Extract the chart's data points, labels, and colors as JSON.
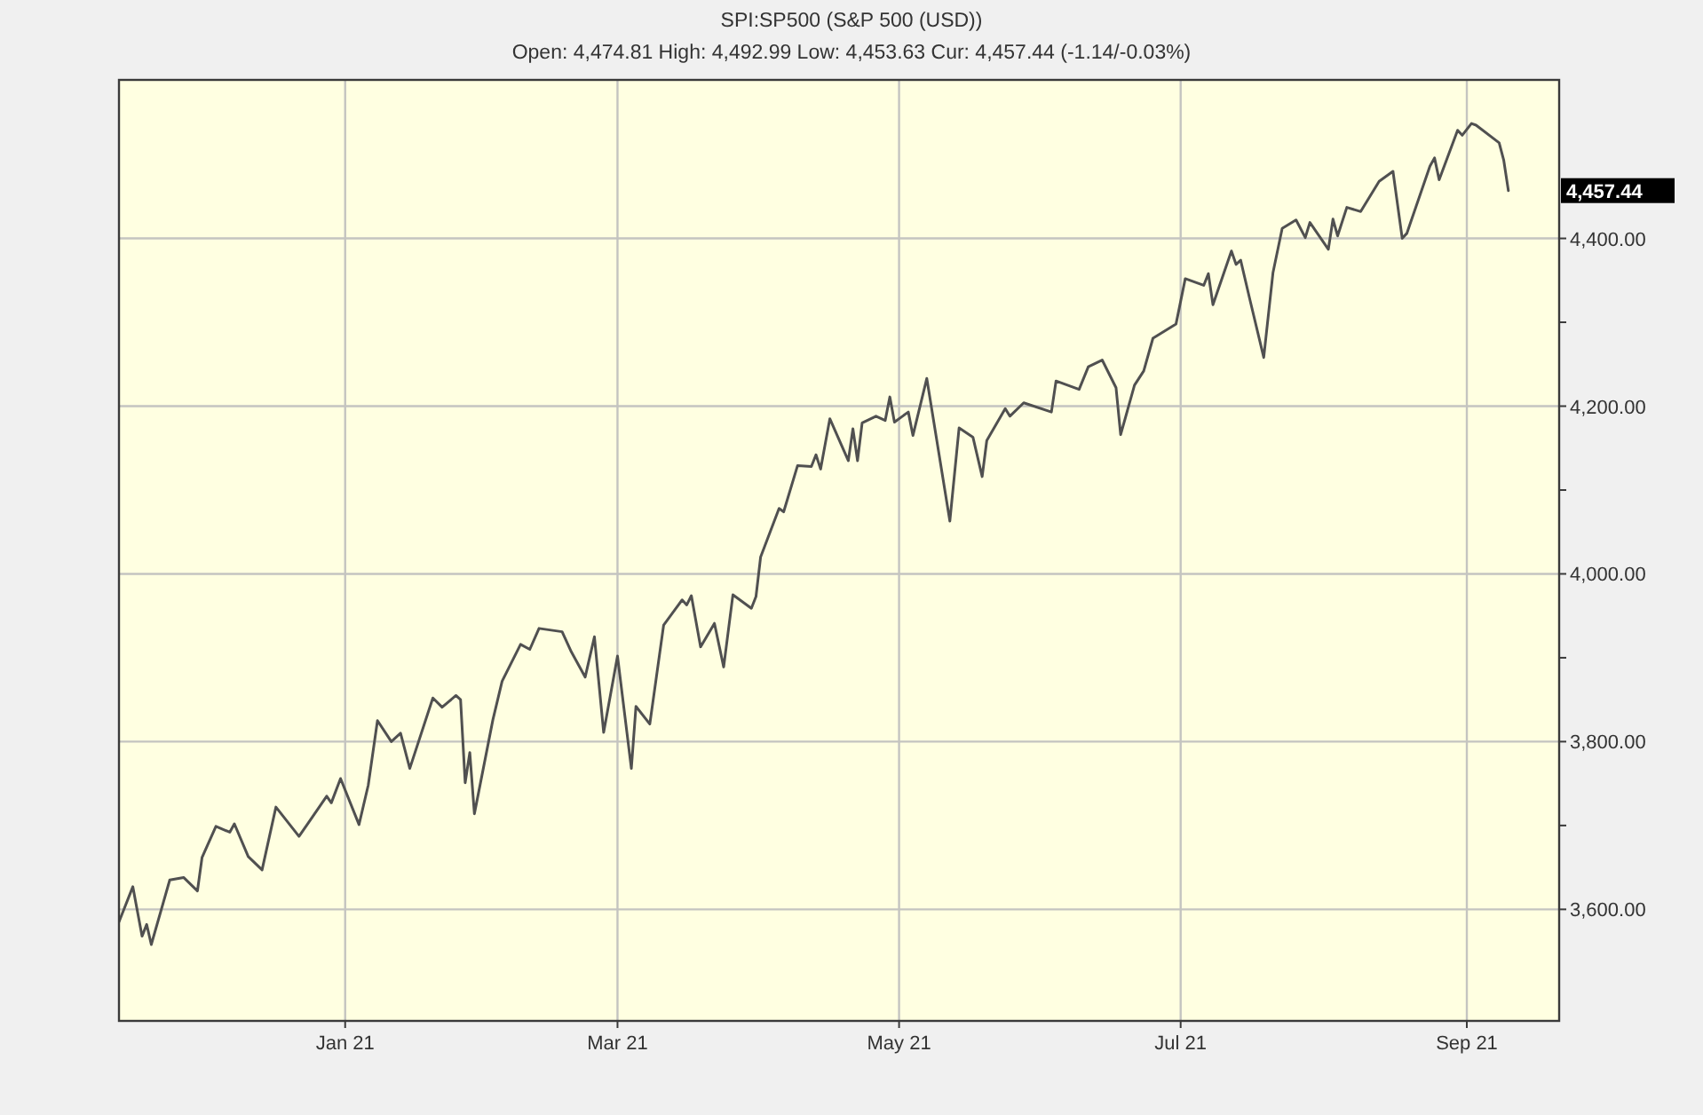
{
  "chart_data": {
    "type": "line",
    "title": "SPI:SP500 (S&P 500 (USD))",
    "subtitle": "Open: 4,474.81 High: 4,492.99 Low: 4,453.63 Cur: 4,457.44 (-1.14/-0.03%)",
    "x": [
      "2020-11-13",
      "2020-11-16",
      "2020-11-18",
      "2020-11-19",
      "2020-11-20",
      "2020-11-24",
      "2020-11-27",
      "2020-11-30",
      "2020-12-01",
      "2020-12-04",
      "2020-12-07",
      "2020-12-08",
      "2020-12-11",
      "2020-12-14",
      "2020-12-17",
      "2020-12-22",
      "2020-12-24",
      "2020-12-28",
      "2020-12-29",
      "2020-12-31",
      "2021-01-04",
      "2021-01-06",
      "2021-01-08",
      "2021-01-11",
      "2021-01-13",
      "2021-01-15",
      "2021-01-20",
      "2021-01-22",
      "2021-01-25",
      "2021-01-26",
      "2021-01-27",
      "2021-01-28",
      "2021-01-29",
      "2021-02-02",
      "2021-02-04",
      "2021-02-08",
      "2021-02-10",
      "2021-02-12",
      "2021-02-17",
      "2021-02-19",
      "2021-02-22",
      "2021-02-24",
      "2021-02-26",
      "2021-03-01",
      "2021-03-04",
      "2021-03-05",
      "2021-03-08",
      "2021-03-11",
      "2021-03-15",
      "2021-03-16",
      "2021-03-17",
      "2021-03-19",
      "2021-03-22",
      "2021-03-24",
      "2021-03-26",
      "2021-03-30",
      "2021-03-31",
      "2021-04-01",
      "2021-04-05",
      "2021-04-06",
      "2021-04-09",
      "2021-04-12",
      "2021-04-13",
      "2021-04-14",
      "2021-04-16",
      "2021-04-20",
      "2021-04-21",
      "2021-04-22",
      "2021-04-23",
      "2021-04-26",
      "2021-04-28",
      "2021-04-29",
      "2021-04-30",
      "2021-05-03",
      "2021-05-04",
      "2021-05-07",
      "2021-05-12",
      "2021-05-14",
      "2021-05-17",
      "2021-05-19",
      "2021-05-20",
      "2021-05-24",
      "2021-05-25",
      "2021-05-28",
      "2021-06-03",
      "2021-06-04",
      "2021-06-09",
      "2021-06-11",
      "2021-06-14",
      "2021-06-17",
      "2021-06-18",
      "2021-06-21",
      "2021-06-23",
      "2021-06-25",
      "2021-06-30",
      "2021-07-02",
      "2021-07-06",
      "2021-07-07",
      "2021-07-08",
      "2021-07-12",
      "2021-07-13",
      "2021-07-14",
      "2021-07-16",
      "2021-07-19",
      "2021-07-21",
      "2021-07-23",
      "2021-07-26",
      "2021-07-28",
      "2021-07-29",
      "2021-08-02",
      "2021-08-03",
      "2021-08-04",
      "2021-08-06",
      "2021-08-09",
      "2021-08-13",
      "2021-08-16",
      "2021-08-18",
      "2021-08-19",
      "2021-08-24",
      "2021-08-25",
      "2021-08-26",
      "2021-08-30",
      "2021-08-31",
      "2021-09-02",
      "2021-09-03",
      "2021-09-08",
      "2021-09-09",
      "2021-09-10"
    ],
    "values": [
      3585,
      3627,
      3568,
      3582,
      3558,
      3635,
      3638,
      3622,
      3662,
      3699,
      3692,
      3702,
      3663,
      3647,
      3722,
      3687,
      3703,
      3735,
      3727,
      3756,
      3701,
      3748,
      3825,
      3800,
      3810,
      3768,
      3852,
      3841,
      3855,
      3850,
      3751,
      3787,
      3714,
      3826,
      3872,
      3916,
      3910,
      3935,
      3931,
      3907,
      3877,
      3925,
      3811,
      3902,
      3768,
      3842,
      3821,
      3939,
      3969,
      3963,
      3974,
      3913,
      3941,
      3889,
      3975,
      3959,
      3973,
      4020,
      4078,
      4074,
      4129,
      4128,
      4142,
      4125,
      4185,
      4135,
      4173,
      4135,
      4180,
      4188,
      4183,
      4211,
      4181,
      4193,
      4165,
      4233,
      4063,
      4174,
      4163,
      4116,
      4159,
      4197,
      4188,
      4204,
      4193,
      4230,
      4220,
      4247,
      4255,
      4222,
      4166,
      4225,
      4242,
      4281,
      4298,
      4352,
      4344,
      4358,
      4321,
      4385,
      4369,
      4374,
      4327,
      4258,
      4359,
      4412,
      4422,
      4401,
      4419,
      4387,
      4423,
      4403,
      4437,
      4432,
      4468,
      4480,
      4400,
      4406,
      4486,
      4496,
      4470,
      4529,
      4523,
      4537,
      4535,
      4514,
      4493,
      4457
    ],
    "color": "#505050",
    "xlim": [
      "2020-11-13",
      "2021-09-21"
    ],
    "ylim": [
      3467,
      4589
    ],
    "xticks": [
      {
        "value": "2021-01-01",
        "label": "Jan 21"
      },
      {
        "value": "2021-03-01",
        "label": "Mar 21"
      },
      {
        "value": "2021-05-01",
        "label": "May 21"
      },
      {
        "value": "2021-07-01",
        "label": "Jul 21"
      },
      {
        "value": "2021-09-01",
        "label": "Sep 21"
      }
    ],
    "yticks": [
      {
        "value": 3600,
        "label": "3,600.00"
      },
      {
        "value": 3700,
        "label": null
      },
      {
        "value": 3800,
        "label": "3,800.00"
      },
      {
        "value": 3900,
        "label": null
      },
      {
        "value": 4000,
        "label": "4,000.00"
      },
      {
        "value": 4100,
        "label": null
      },
      {
        "value": 4200,
        "label": "4,200.00"
      },
      {
        "value": 4300,
        "label": null
      },
      {
        "value": 4400,
        "label": "4,400.00"
      }
    ],
    "grid": true,
    "annotations": [
      "4,457.44"
    ]
  }
}
